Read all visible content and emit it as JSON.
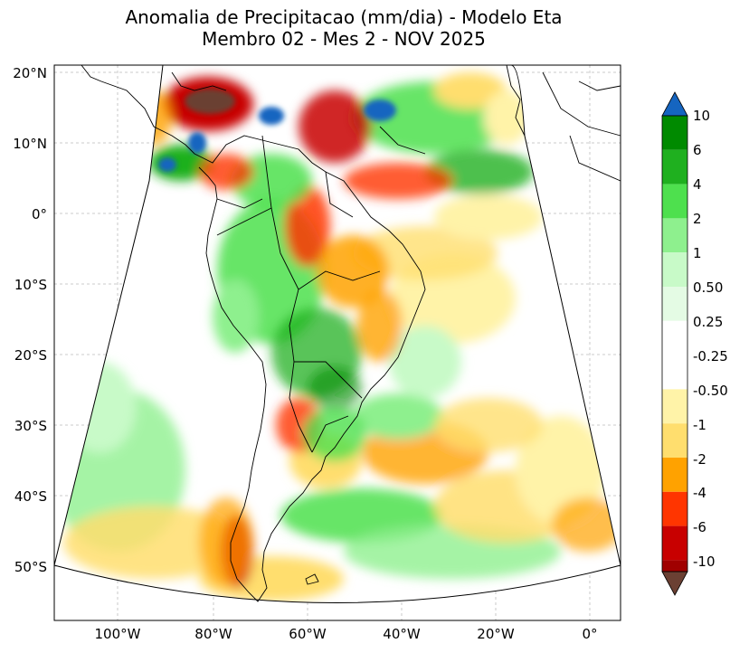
{
  "title": {
    "line1": "Anomalia de Precipitacao (mm/dia) - Modelo Eta",
    "line2": "Membro 02 - Mes 2 - NOV 2025"
  },
  "axes": {
    "lat_labels": [
      "20°N",
      "10°N",
      "0°",
      "10°S",
      "20°S",
      "30°S",
      "40°S",
      "50°S"
    ],
    "lon_labels": [
      "100°W",
      "80°W",
      "60°W",
      "40°W",
      "20°W",
      "0°"
    ]
  },
  "colorbar": {
    "tick_labels": [
      "10",
      "6",
      "4",
      "2",
      "1",
      "0.50",
      "0.25",
      "-0.25",
      "-0.50",
      "-1",
      "-2",
      "-4",
      "-6",
      "-10"
    ],
    "colors": {
      "over": "#1565c0",
      "levels": [
        "#008a00",
        "#1fb01f",
        "#4ee04e",
        "#8ef08e",
        "#c8fac8",
        "#e4fbe4",
        "#ffffff",
        "#ffffff",
        "#fff3a8",
        "#ffde6e",
        "#ffa200",
        "#ff3500",
        "#c80000",
        "#a00000"
      ],
      "under": "#6b4033"
    }
  }
}
